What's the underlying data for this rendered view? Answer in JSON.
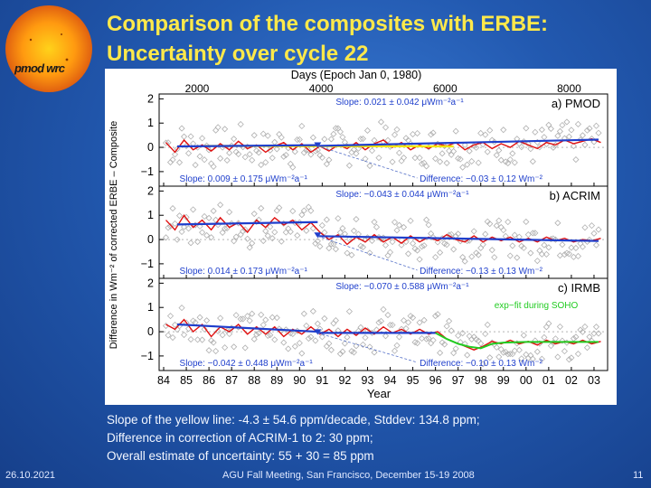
{
  "title_line1": "Comparison of the composites with ERBE:",
  "title_line2": "Uncertainty over cycle 22",
  "logo_text": "pmod wrc",
  "caption": [
    "Slope of the yellow line: -4.3 ± 54.6 ppm/decade,  Stddev: 134.8 ppm;",
    "Difference in correction of ACRIM-1 to 2: 30 ppm;",
    "Overall estimate of uncertainty: 55 + 30 = 85 ppm"
  ],
  "footer": {
    "date": "26.10.2021",
    "meeting": "AGU Fall Meeting, San Francisco, December 15-19 2008",
    "page": "11"
  },
  "colors": {
    "background": "#2259b0",
    "title": "#ffe94a",
    "fit_line": "#1f3fcc",
    "difference_curve": "#e01010",
    "yellow_line": "#f2e600",
    "exp_fit": "#22cc22",
    "scatter": "#b0b0b0"
  },
  "chart_data": {
    "type": "line",
    "top_axis_label": "Days (Epoch Jan 0, 1980)",
    "top_ticks": [
      "2000",
      "4000",
      "6000",
      "8000"
    ],
    "top_tick_values": [
      2000,
      4000,
      6000,
      8000
    ],
    "xlabel": "Year",
    "x_ticks": [
      "84",
      "85",
      "86",
      "87",
      "88",
      "89",
      "90",
      "91",
      "92",
      "93",
      "94",
      "95",
      "96",
      "97",
      "98",
      "99",
      "00",
      "01",
      "02",
      "03"
    ],
    "x_tick_values": [
      1984,
      1985,
      1986,
      1987,
      1988,
      1989,
      1990,
      1991,
      1992,
      1993,
      1994,
      1995,
      1996,
      1997,
      1998,
      1999,
      2000,
      2001,
      2002,
      2003
    ],
    "xlim": [
      1983.8,
      2003.6
    ],
    "ylabel": "Difference in Wm⁻² of corrected ERBE – Composite",
    "panels": [
      {
        "name": "a) PMOD",
        "ylim": [
          -1.6,
          2.2
        ],
        "y_ticks": [
          2,
          1,
          0,
          -1
        ],
        "y_tick_labels": [
          "2",
          "1",
          "0",
          "−1"
        ],
        "slope_left": "Slope: 0.009 ± 0.175 μWm⁻²a⁻¹",
        "slope_right": "Slope: 0.021 ± 0.042 μWm⁻²a⁻¹",
        "difference": "Difference: −0.03 ±  0.12 Wm⁻²",
        "step": 0.03,
        "fit_left": [
          [
            1984.6,
            0.04
          ],
          [
            1990.8,
            0.09
          ]
        ],
        "fit_right": [
          [
            1990.8,
            0.06
          ],
          [
            2003.2,
            0.32
          ]
        ],
        "yellow": [
          [
            1985.8,
            0.06
          ],
          [
            1996.8,
            0.04
          ]
        ],
        "curve": [
          [
            1984.1,
            0.2
          ],
          [
            1984.5,
            -0.2
          ],
          [
            1984.9,
            0.3
          ],
          [
            1985.3,
            -0.1
          ],
          [
            1985.7,
            0.1
          ],
          [
            1986.1,
            -0.15
          ],
          [
            1986.5,
            0.15
          ],
          [
            1986.9,
            -0.1
          ],
          [
            1987.3,
            0.25
          ],
          [
            1987.7,
            -0.05
          ],
          [
            1988.1,
            0.1
          ],
          [
            1988.5,
            -0.2
          ],
          [
            1988.9,
            0.05
          ],
          [
            1989.3,
            0.2
          ],
          [
            1989.7,
            -0.1
          ],
          [
            1990.1,
            0.15
          ],
          [
            1990.5,
            -0.2
          ],
          [
            1990.9,
            0.05
          ],
          [
            1991.3,
            -0.15
          ],
          [
            1991.7,
            0.1
          ],
          [
            1992.1,
            -0.05
          ],
          [
            1992.5,
            0.2
          ],
          [
            1992.9,
            -0.1
          ],
          [
            1993.3,
            0.15
          ],
          [
            1993.7,
            0.3
          ],
          [
            1994.1,
            0.0
          ],
          [
            1994.5,
            0.2
          ],
          [
            1994.9,
            -0.1
          ],
          [
            1995.3,
            0.1
          ],
          [
            1995.7,
            -0.05
          ],
          [
            1996.1,
            0.15
          ],
          [
            1996.5,
            0.05
          ],
          [
            1996.9,
            0.2
          ],
          [
            1997.3,
            -0.1
          ],
          [
            1997.7,
            0.1
          ],
          [
            1998.1,
            0.2
          ],
          [
            1998.5,
            -0.05
          ],
          [
            1998.9,
            0.15
          ],
          [
            1999.3,
            0.0
          ],
          [
            1999.7,
            0.25
          ],
          [
            2000.1,
            0.1
          ],
          [
            2000.5,
            -0.05
          ],
          [
            2000.9,
            0.2
          ],
          [
            2001.3,
            0.1
          ],
          [
            2001.7,
            0.3
          ],
          [
            2002.1,
            0.15
          ],
          [
            2002.5,
            0.25
          ],
          [
            2002.9,
            0.35
          ],
          [
            2003.3,
            0.2
          ]
        ]
      },
      {
        "name": "b) ACRIM",
        "ylim": [
          -1.6,
          2.2
        ],
        "y_ticks": [
          2,
          1,
          0,
          -1
        ],
        "y_tick_labels": [
          "2",
          "1",
          "0",
          "−1"
        ],
        "slope_left": "Slope: 0.014 ± 0.173 μWm⁻²a⁻¹",
        "slope_right": "Slope: −0.043 ± 0.044 μWm⁻²a⁻¹",
        "difference": "Difference: −0.13 ±  0.13 Wm⁻²",
        "step": 0.58,
        "fit_left": [
          [
            1984.6,
            0.62
          ],
          [
            1990.8,
            0.72
          ]
        ],
        "fit_right": [
          [
            1990.8,
            0.14
          ],
          [
            2003.2,
            -0.06
          ]
        ],
        "yellow": [],
        "curve": [
          [
            1984.1,
            0.8
          ],
          [
            1984.5,
            0.4
          ],
          [
            1984.9,
            1.0
          ],
          [
            1985.3,
            0.5
          ],
          [
            1985.7,
            0.8
          ],
          [
            1986.1,
            0.4
          ],
          [
            1986.5,
            0.9
          ],
          [
            1986.9,
            0.5
          ],
          [
            1987.3,
            0.7
          ],
          [
            1987.7,
            0.3
          ],
          [
            1988.1,
            0.8
          ],
          [
            1988.5,
            0.5
          ],
          [
            1988.9,
            0.9
          ],
          [
            1989.3,
            0.6
          ],
          [
            1989.7,
            0.8
          ],
          [
            1990.1,
            0.4
          ],
          [
            1990.5,
            0.7
          ],
          [
            1990.9,
            0.3
          ],
          [
            1991.3,
            0.0
          ],
          [
            1991.7,
            0.2
          ],
          [
            1992.1,
            -0.2
          ],
          [
            1992.5,
            0.1
          ],
          [
            1992.9,
            -0.1
          ],
          [
            1993.3,
            0.2
          ],
          [
            1993.7,
            -0.1
          ],
          [
            1994.1,
            0.1
          ],
          [
            1994.5,
            -0.15
          ],
          [
            1994.9,
            0.15
          ],
          [
            1995.3,
            -0.1
          ],
          [
            1995.7,
            0.1
          ],
          [
            1996.1,
            -0.05
          ],
          [
            1996.5,
            0.2
          ],
          [
            1996.9,
            0.0
          ],
          [
            1997.3,
            -0.1
          ],
          [
            1997.7,
            0.15
          ],
          [
            1998.1,
            -0.1
          ],
          [
            1998.5,
            0.1
          ],
          [
            1998.9,
            -0.05
          ],
          [
            1999.3,
            0.1
          ],
          [
            1999.7,
            -0.1
          ],
          [
            2000.1,
            0.05
          ],
          [
            2000.5,
            -0.1
          ],
          [
            2000.9,
            0.1
          ],
          [
            2001.3,
            -0.05
          ],
          [
            2001.7,
            0.05
          ],
          [
            2002.1,
            -0.1
          ],
          [
            2002.5,
            0.0
          ],
          [
            2002.9,
            -0.05
          ],
          [
            2003.3,
            0.05
          ]
        ]
      },
      {
        "name": "c) IRMB",
        "ylim": [
          -1.6,
          2.2
        ],
        "y_ticks": [
          2,
          1,
          0,
          -1
        ],
        "y_tick_labels": [
          "2",
          "1",
          "0",
          "−1"
        ],
        "slope_left": "Slope: −0.042 ± 0.448 μWm⁻²a⁻¹",
        "slope_right": "Slope: −0.070 ± 0.588 μWm⁻²a⁻¹",
        "difference": "Difference: −0.10 ±  0.13 Wm⁻²",
        "annotation": "exp−fit during SOHO",
        "step": 0.1,
        "fit_left": [
          [
            1984.6,
            0.3
          ],
          [
            1990.8,
            0.0
          ]
        ],
        "fit_right": [
          [
            1990.8,
            -0.05
          ],
          [
            1996.0,
            -0.05
          ]
        ],
        "exp_fit": [
          [
            1996.0,
            -0.05
          ],
          [
            1996.5,
            -0.3
          ],
          [
            1997.0,
            -0.5
          ],
          [
            1997.5,
            -0.62
          ],
          [
            1998.0,
            -0.68
          ],
          [
            1998.5,
            -0.5
          ],
          [
            1999.0,
            -0.45
          ],
          [
            2000.0,
            -0.42
          ],
          [
            2001.0,
            -0.42
          ],
          [
            2002.0,
            -0.42
          ],
          [
            2003.2,
            -0.42
          ]
        ],
        "yellow": [],
        "curve": [
          [
            1984.1,
            0.3
          ],
          [
            1984.5,
            0.1
          ],
          [
            1984.9,
            0.5
          ],
          [
            1985.3,
            0.0
          ],
          [
            1985.7,
            0.3
          ],
          [
            1986.1,
            -0.2
          ],
          [
            1986.5,
            0.2
          ],
          [
            1986.9,
            0.0
          ],
          [
            1987.3,
            0.3
          ],
          [
            1987.7,
            -0.1
          ],
          [
            1988.1,
            0.2
          ],
          [
            1988.5,
            -0.1
          ],
          [
            1988.9,
            0.2
          ],
          [
            1989.3,
            -0.2
          ],
          [
            1989.7,
            0.1
          ],
          [
            1990.1,
            -0.1
          ],
          [
            1990.5,
            0.2
          ],
          [
            1990.9,
            -0.1
          ],
          [
            1991.3,
            0.1
          ],
          [
            1991.7,
            -0.2
          ],
          [
            1992.1,
            0.1
          ],
          [
            1992.5,
            -0.15
          ],
          [
            1992.9,
            0.15
          ],
          [
            1993.3,
            -0.1
          ],
          [
            1993.7,
            0.2
          ],
          [
            1994.1,
            -0.05
          ],
          [
            1994.5,
            0.1
          ],
          [
            1994.9,
            -0.1
          ],
          [
            1995.3,
            0.1
          ],
          [
            1995.7,
            -0.1
          ],
          [
            1996.1,
            0.0
          ],
          [
            1996.5,
            -0.3
          ],
          [
            1996.9,
            -0.45
          ],
          [
            1997.3,
            -0.6
          ],
          [
            1997.7,
            -0.75
          ],
          [
            1998.1,
            -0.6
          ],
          [
            1998.5,
            -0.4
          ],
          [
            1998.9,
            -0.5
          ],
          [
            1999.3,
            -0.35
          ],
          [
            1999.7,
            -0.5
          ],
          [
            2000.1,
            -0.4
          ],
          [
            2000.5,
            -0.55
          ],
          [
            2000.9,
            -0.35
          ],
          [
            2001.3,
            -0.5
          ],
          [
            2001.7,
            -0.4
          ],
          [
            2002.1,
            -0.5
          ],
          [
            2002.5,
            -0.35
          ],
          [
            2002.9,
            -0.5
          ],
          [
            2003.3,
            -0.4
          ]
        ]
      }
    ]
  }
}
